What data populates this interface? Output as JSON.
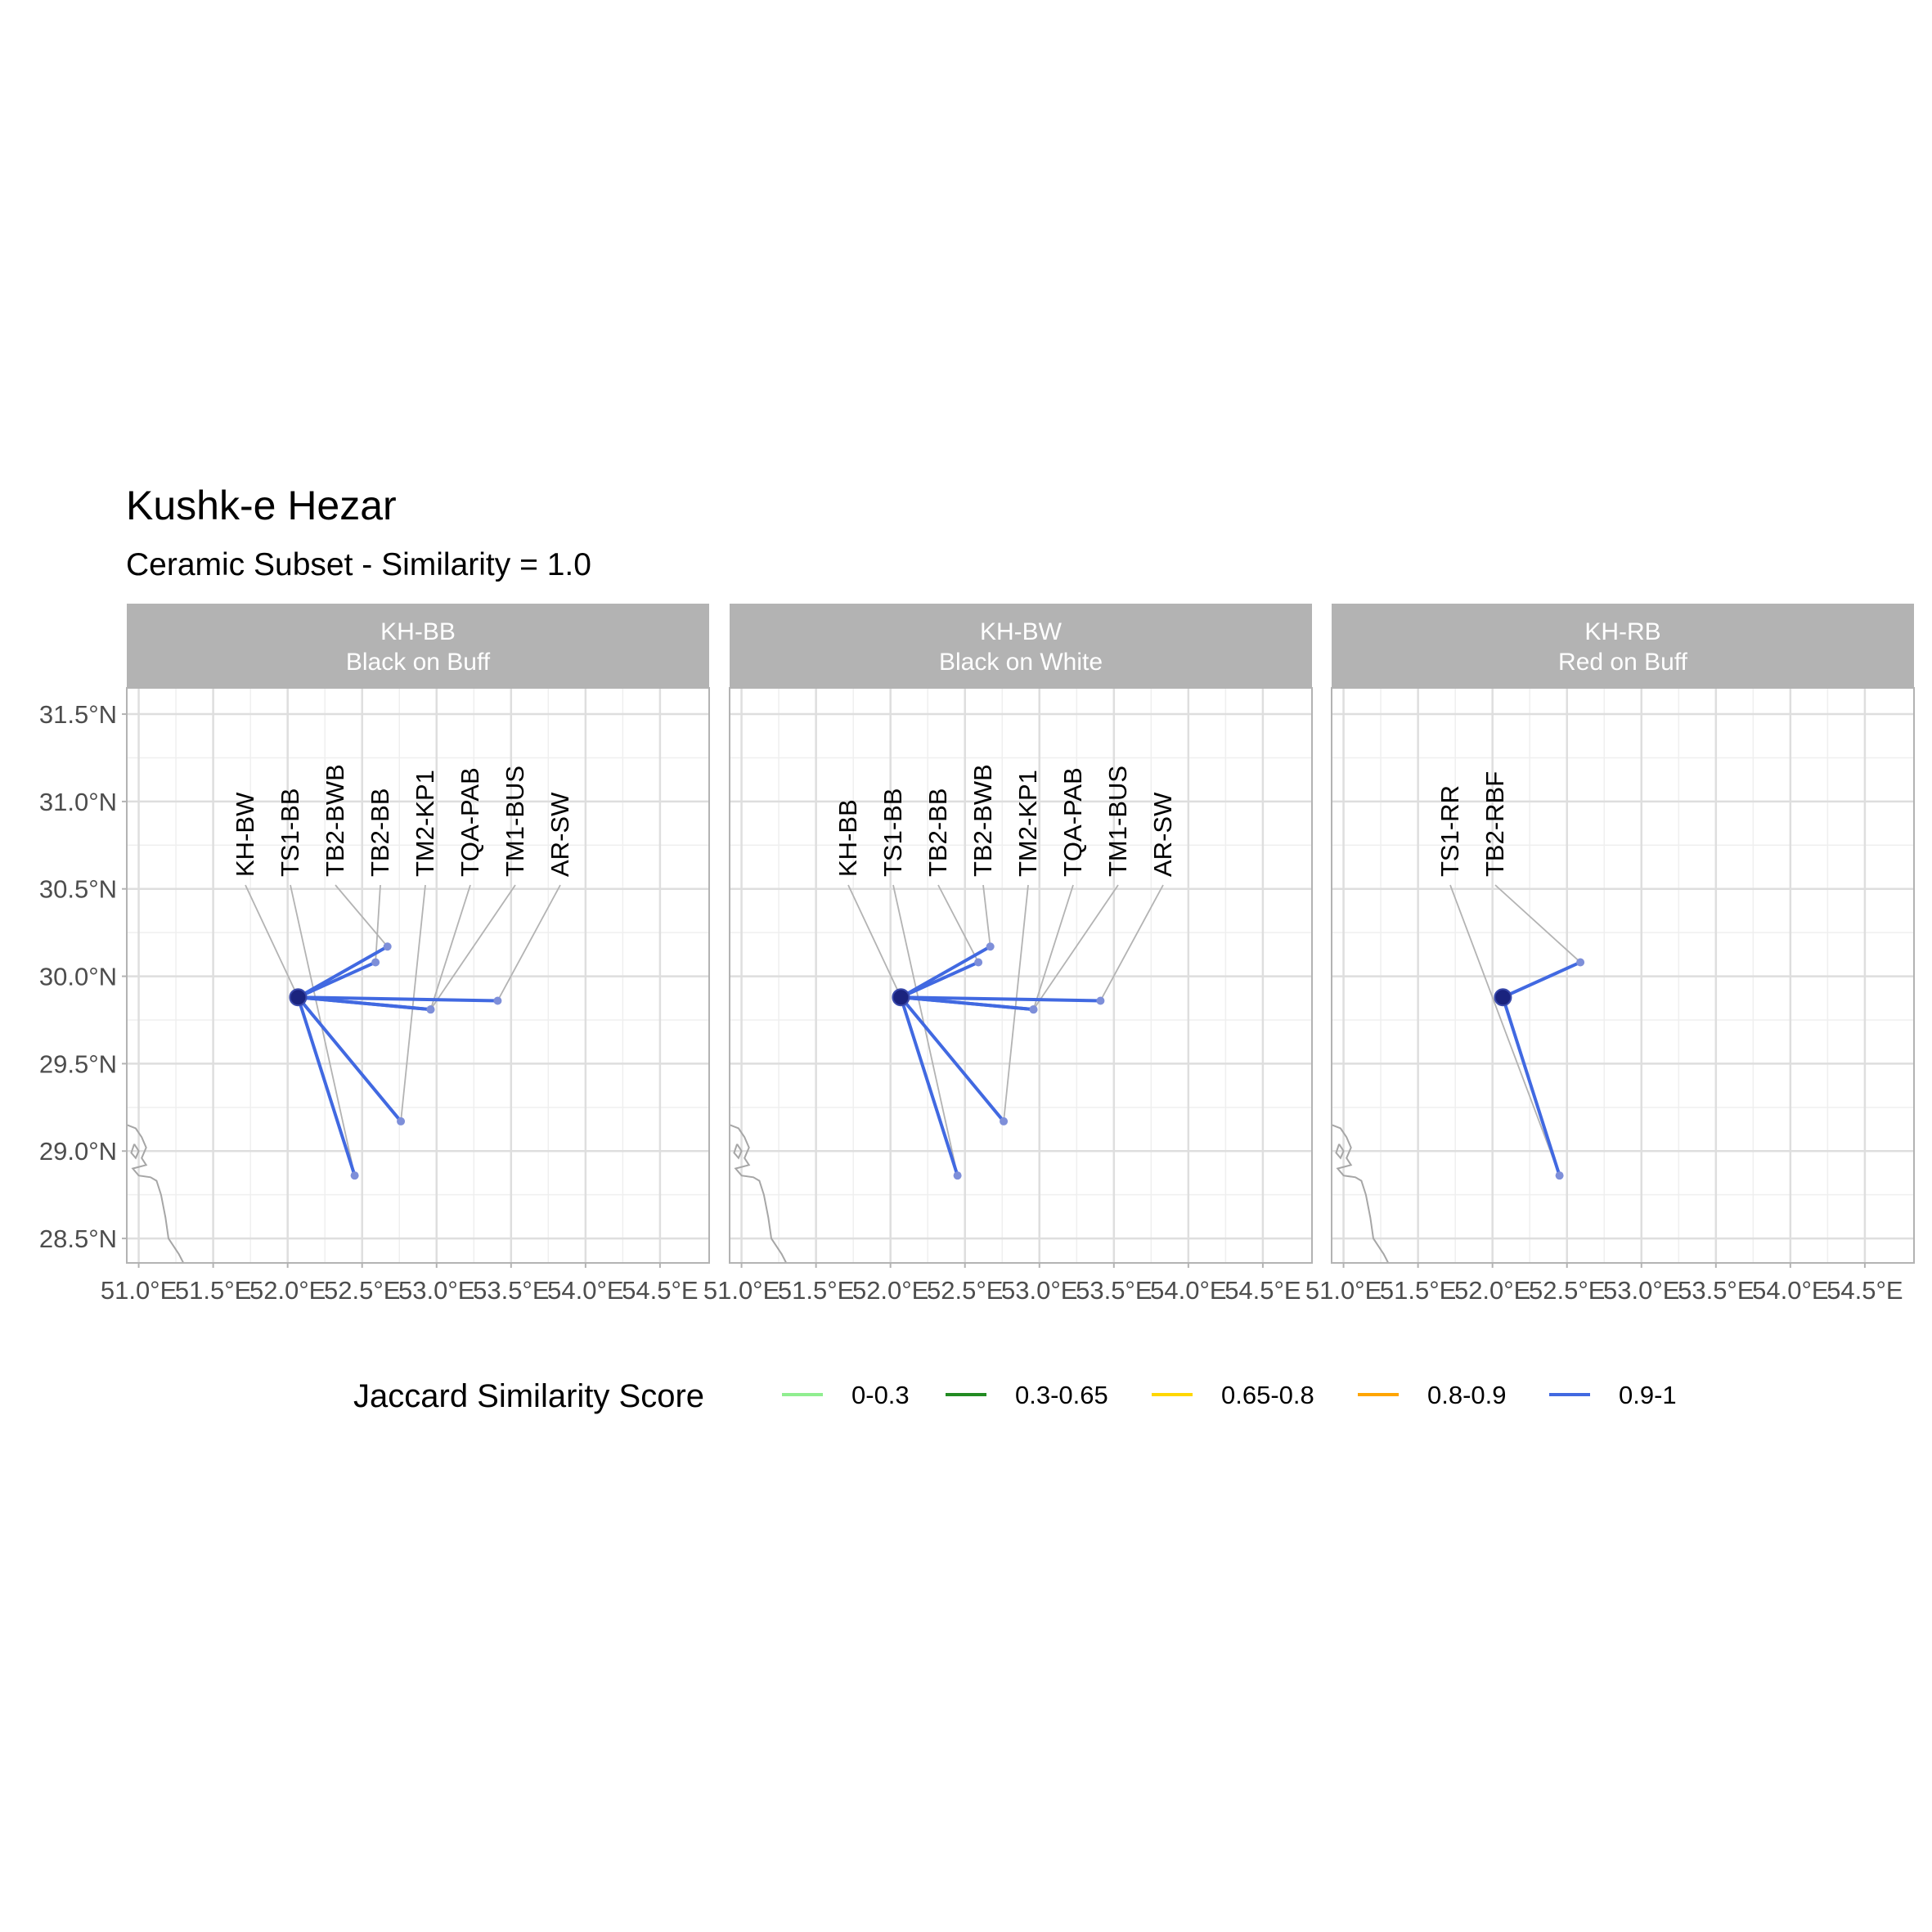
{
  "title": "Kushk-e Hezar",
  "subtitle": "Ceramic Subset - Similarity = 1.0",
  "legend": {
    "title": "Jaccard Similarity Score",
    "entries": [
      {
        "label": "0-0.3",
        "color": "#90ee90"
      },
      {
        "label": "0.3-0.65",
        "color": "#228b22"
      },
      {
        "label": "0.65-0.8",
        "color": "#ffd700"
      },
      {
        "label": "0.8-0.9",
        "color": "#ffa500"
      },
      {
        "label": "0.9-1",
        "color": "#4169e1"
      }
    ]
  },
  "colors": {
    "panel_strip": "#b3b3b3",
    "grid": "#dedede",
    "panel_border": "#b3b3b3",
    "coast": "#a6a6a6",
    "leader": "#b3b3b3",
    "link": "#4169e1",
    "origin": "#1a237e",
    "site_point": "#7e8fd9"
  },
  "chart_data": {
    "type": "map",
    "x_axis": {
      "range": [
        50.92,
        54.83
      ],
      "ticks": [
        51.0,
        51.5,
        52.0,
        52.5,
        53.0,
        53.5,
        54.0,
        54.5
      ],
      "tick_labels": [
        "51.0°E",
        "51.5°E",
        "52.0°E",
        "52.5°E",
        "53.0°E",
        "53.5°E",
        "54.0°E",
        "54.5°E"
      ]
    },
    "y_axis": {
      "range": [
        28.36,
        31.65
      ],
      "ticks": [
        28.5,
        29.0,
        29.5,
        30.0,
        30.5,
        31.0,
        31.5
      ],
      "tick_labels": [
        "28.5°N",
        "29.0°N",
        "29.5°N",
        "30.0°N",
        "30.5°N",
        "31.0°N",
        "31.5°N"
      ]
    },
    "grid": true,
    "legend_position": "bottom",
    "coastline": [
      [
        50.92,
        29.15
      ],
      [
        50.98,
        29.13
      ],
      [
        51.02,
        29.08
      ],
      [
        51.05,
        29.02
      ],
      [
        51.02,
        28.96
      ],
      [
        51.05,
        28.92
      ],
      [
        50.96,
        28.9
      ],
      [
        51.0,
        28.86
      ],
      [
        51.08,
        28.85
      ],
      [
        51.12,
        28.83
      ],
      [
        51.15,
        28.75
      ],
      [
        51.18,
        28.62
      ],
      [
        51.2,
        28.5
      ],
      [
        51.27,
        28.41
      ],
      [
        51.3,
        28.36
      ]
    ],
    "coastline_islet": [
      [
        50.97,
        29.04
      ],
      [
        51.0,
        29.0
      ],
      [
        50.98,
        28.96
      ],
      [
        50.95,
        28.99
      ],
      [
        50.97,
        29.04
      ]
    ],
    "panels": [
      {
        "code": "KH-BB",
        "name": "Black on Buff",
        "origin": {
          "lon": 52.07,
          "lat": 29.88
        },
        "sites": [
          {
            "label": "KH-BW",
            "lon": 52.07,
            "lat": 29.88,
            "similarity_class": "0.9-1"
          },
          {
            "label": "TS1-BB",
            "lon": 52.45,
            "lat": 28.86,
            "similarity_class": "0.9-1"
          },
          {
            "label": "TB2-BWB",
            "lon": 52.67,
            "lat": 30.17,
            "similarity_class": "0.9-1"
          },
          {
            "label": "TB2-BB",
            "lon": 52.59,
            "lat": 30.08,
            "similarity_class": "0.9-1"
          },
          {
            "label": "TM2-KP1",
            "lon": 52.76,
            "lat": 29.17,
            "similarity_class": "0.9-1"
          },
          {
            "label": "TQA-PAB",
            "lon": 52.96,
            "lat": 29.81,
            "similarity_class": "0.9-1"
          },
          {
            "label": "TM1-BUS",
            "lon": 52.96,
            "lat": 29.81,
            "similarity_class": "0.9-1"
          },
          {
            "label": "AR-SW",
            "lon": 53.41,
            "lat": 29.86,
            "similarity_class": "0.9-1"
          }
        ]
      },
      {
        "code": "KH-BW",
        "name": "Black on White",
        "origin": {
          "lon": 52.07,
          "lat": 29.88
        },
        "sites": [
          {
            "label": "KH-BB",
            "lon": 52.07,
            "lat": 29.88,
            "similarity_class": "0.9-1"
          },
          {
            "label": "TS1-BB",
            "lon": 52.45,
            "lat": 28.86,
            "similarity_class": "0.9-1"
          },
          {
            "label": "TB2-BB",
            "lon": 52.59,
            "lat": 30.08,
            "similarity_class": "0.9-1"
          },
          {
            "label": "TB2-BWB",
            "lon": 52.67,
            "lat": 30.17,
            "similarity_class": "0.9-1"
          },
          {
            "label": "TM2-KP1",
            "lon": 52.76,
            "lat": 29.17,
            "similarity_class": "0.9-1"
          },
          {
            "label": "TQA-PAB",
            "lon": 52.96,
            "lat": 29.81,
            "similarity_class": "0.9-1"
          },
          {
            "label": "TM1-BUS",
            "lon": 52.96,
            "lat": 29.81,
            "similarity_class": "0.9-1"
          },
          {
            "label": "AR-SW",
            "lon": 53.41,
            "lat": 29.86,
            "similarity_class": "0.9-1"
          }
        ]
      },
      {
        "code": "KH-RB",
        "name": "Red on Buff",
        "origin": {
          "lon": 52.07,
          "lat": 29.88
        },
        "sites": [
          {
            "label": "TS1-RR",
            "lon": 52.45,
            "lat": 28.86,
            "similarity_class": "0.9-1"
          },
          {
            "label": "TB2-RBF",
            "lon": 52.59,
            "lat": 30.08,
            "similarity_class": "0.9-1"
          }
        ]
      }
    ]
  }
}
